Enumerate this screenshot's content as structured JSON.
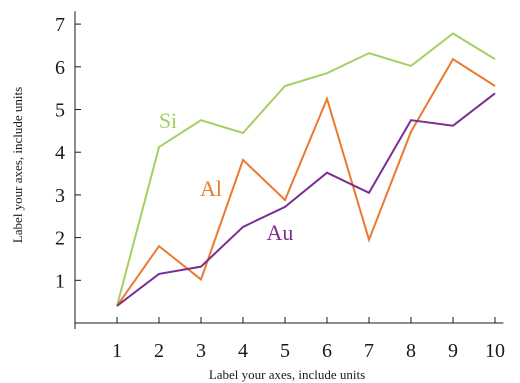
{
  "chart_data": {
    "type": "line",
    "x": [
      1,
      2,
      3,
      4,
      5,
      6,
      7,
      8,
      9,
      10
    ],
    "xticks": [
      1,
      2,
      3,
      4,
      5,
      6,
      7,
      8,
      9,
      10
    ],
    "yticks": [
      1,
      2,
      3,
      4,
      5,
      6,
      7
    ],
    "xlim": [
      0,
      10.2
    ],
    "ylim": [
      0,
      7.3
    ],
    "xlabel": "Label your axes, include units",
    "ylabel": "Label your axes, include units",
    "grid": false,
    "series": [
      {
        "name": "Si",
        "color": "#a6cf62",
        "values": [
          0.4,
          4.12,
          4.75,
          4.45,
          5.55,
          5.85,
          6.32,
          6.02,
          6.78,
          6.18
        ]
      },
      {
        "name": "Al",
        "color": "#ea7a2f",
        "values": [
          0.4,
          1.8,
          1.02,
          3.82,
          2.88,
          5.25,
          1.95,
          4.48,
          6.18,
          5.55
        ]
      },
      {
        "name": "Au",
        "color": "#7b2f91",
        "values": [
          0.4,
          1.15,
          1.32,
          2.25,
          2.72,
          3.52,
          3.05,
          4.75,
          4.62,
          5.38
        ]
      }
    ]
  }
}
